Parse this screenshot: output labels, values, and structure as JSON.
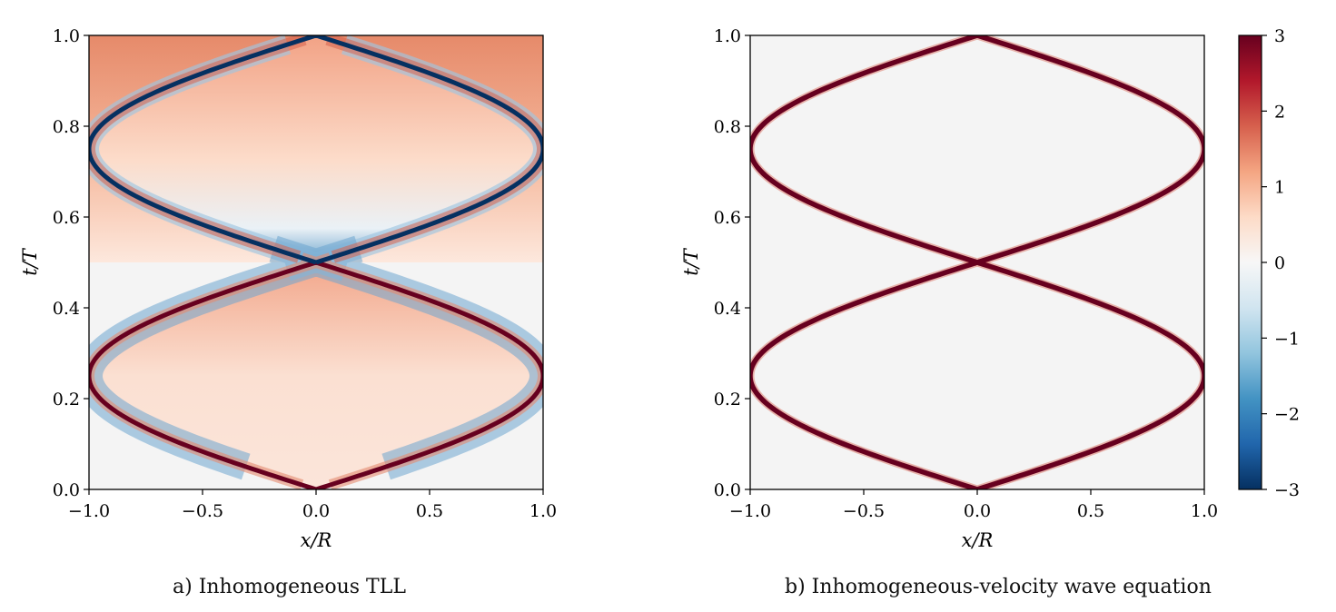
{
  "captions": {
    "a": "a) Inhomogeneous TLL",
    "b": "b) Inhomogeneous-velocity wave equation"
  },
  "colors": {
    "negative_dark": "#053061",
    "zero": "#f7f7f7",
    "positive_dark": "#67001f",
    "background_field": "#f4f4f4",
    "diverging_stops": [
      "#053061",
      "#2166ac",
      "#4393c3",
      "#92c5de",
      "#d1e5f0",
      "#f7f7f7",
      "#fddbc7",
      "#f4a582",
      "#d6604d",
      "#b2182b",
      "#67001f"
    ]
  },
  "chart_data": [
    {
      "type": "heatmap",
      "panel": "a",
      "title": "",
      "xlabel": "x/R",
      "ylabel": "t/T",
      "xlim": [
        -1.0,
        1.0
      ],
      "ylim": [
        0.0,
        1.0
      ],
      "xticks": [
        "−1.0",
        "−0.5",
        "0.0",
        "0.5",
        "1.0"
      ],
      "yticks": [
        "0.0",
        "0.2",
        "0.4",
        "0.6",
        "0.8",
        "1.0"
      ],
      "colormap": "RdBu_r",
      "clim": [
        -3,
        3
      ],
      "features": {
        "front_meeting_times": [
          0.0,
          0.5,
          1.0
        ],
        "front_edge_times": [
          0.25,
          0.75
        ],
        "front_lower_sign": "positive",
        "front_upper_sign": "negative",
        "background_value": 0.0,
        "interior_value_range": [
          0.2,
          1.5
        ]
      }
    },
    {
      "type": "heatmap",
      "panel": "b",
      "title": "",
      "xlabel": "x/R",
      "ylabel": "t/T",
      "xlim": [
        -1.0,
        1.0
      ],
      "ylim": [
        0.0,
        1.0
      ],
      "xticks": [
        "−1.0",
        "−0.5",
        "0.0",
        "0.5",
        "1.0"
      ],
      "yticks": [
        "0.0",
        "0.2",
        "0.4",
        "0.6",
        "0.8",
        "1.0"
      ],
      "colormap": "RdBu_r",
      "clim": [
        -3,
        3
      ],
      "features": {
        "front_meeting_times": [
          0.0,
          0.5,
          1.0
        ],
        "front_edge_times": [
          0.25,
          0.75
        ],
        "front_sign": "positive",
        "background_value": 0.0
      }
    }
  ],
  "colorbar": {
    "ticks": [
      "3",
      "2",
      "1",
      "0",
      "−1",
      "−2",
      "−3"
    ],
    "range": [
      -3,
      3
    ]
  }
}
